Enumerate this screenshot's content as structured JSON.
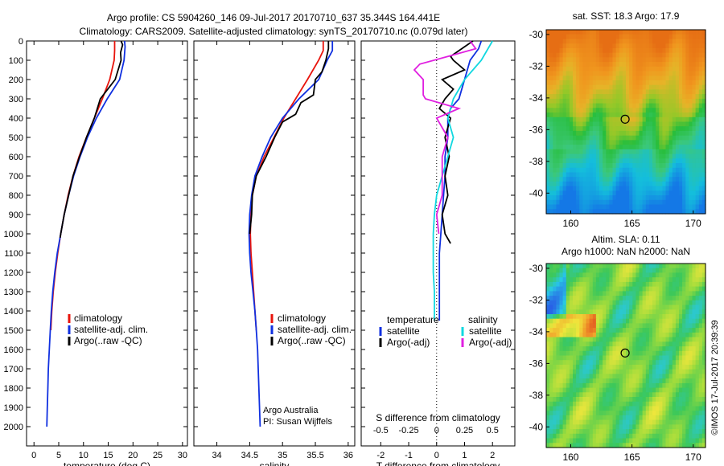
{
  "header": {
    "line1": "Argo profile: CS 5904260_146 09-Jul-2017 20170710_637 35.344S 164.441E",
    "line2": "Climatology: CARS2009. Satellite-adjusted climatology: synTS_20170710.nc (0.079d later)"
  },
  "colors": {
    "climatology": "#e8140c",
    "satellite": "#1030e0",
    "argo": "#000000",
    "sat_salinity": "#10d8e0",
    "argo_salinity_adj": "#e020e0"
  },
  "chart_data": [
    {
      "type": "line",
      "id": "temperature",
      "xlabel": "temperature (deg C)",
      "xlim": [
        -1.5,
        31
      ],
      "ylim": [
        2100,
        0
      ],
      "xticks": [
        0,
        5,
        10,
        15,
        20,
        25,
        30
      ],
      "yticks": [
        0,
        100,
        200,
        300,
        400,
        500,
        600,
        700,
        800,
        900,
        1000,
        1100,
        1200,
        1300,
        1400,
        1500,
        1600,
        1700,
        1800,
        1900,
        2000
      ],
      "legend": [
        "climatology",
        "satellite-adj. clim.",
        "Argo(..raw -QC)"
      ],
      "series": [
        {
          "name": "climatology",
          "color": "#e8140c",
          "points": [
            [
              16.3,
              0
            ],
            [
              16.3,
              50
            ],
            [
              16.2,
              100
            ],
            [
              15.3,
              200
            ],
            [
              13.8,
              300
            ],
            [
              12.2,
              400
            ],
            [
              10.6,
              500
            ],
            [
              9.1,
              600
            ],
            [
              7.9,
              700
            ],
            [
              6.9,
              800
            ],
            [
              6.1,
              900
            ],
            [
              5.4,
              1000
            ],
            [
              4.8,
              1100
            ],
            [
              4.3,
              1200
            ],
            [
              3.9,
              1300
            ],
            [
              3.6,
              1400
            ],
            [
              3.4,
              1500
            ]
          ]
        },
        {
          "name": "satellite-adj. clim.",
          "color": "#1030e0",
          "points": [
            [
              18.3,
              0
            ],
            [
              18.4,
              30
            ],
            [
              18.2,
              100
            ],
            [
              17.3,
              200
            ],
            [
              14.8,
              300
            ],
            [
              12.6,
              400
            ],
            [
              10.8,
              500
            ],
            [
              9.3,
              600
            ],
            [
              8.0,
              700
            ],
            [
              7.0,
              800
            ],
            [
              6.1,
              900
            ],
            [
              5.4,
              1000
            ],
            [
              4.7,
              1100
            ],
            [
              4.2,
              1200
            ],
            [
              3.8,
              1300
            ],
            [
              3.5,
              1400
            ],
            [
              3.3,
              1500
            ],
            [
              3.1,
              1600
            ],
            [
              2.9,
              1700
            ],
            [
              2.8,
              1800
            ],
            [
              2.7,
              1900
            ],
            [
              2.6,
              2000
            ]
          ]
        },
        {
          "name": "Argo(..raw -QC)",
          "color": "#000000",
          "points": [
            [
              17.6,
              0
            ],
            [
              17.9,
              20
            ],
            [
              17.5,
              60
            ],
            [
              17.6,
              100
            ],
            [
              16.4,
              200
            ],
            [
              13.4,
              300
            ],
            [
              12.2,
              400
            ],
            [
              10.6,
              500
            ],
            [
              9.2,
              600
            ],
            [
              7.9,
              700
            ],
            [
              7.0,
              800
            ],
            [
              6.1,
              900
            ],
            [
              5.4,
              1000
            ],
            [
              5.3,
              1020
            ]
          ]
        }
      ]
    },
    {
      "type": "line",
      "id": "salinity",
      "xlabel": "salinity",
      "xlim": [
        33.65,
        36.1
      ],
      "ylim": [
        2100,
        0
      ],
      "xticks": [
        34,
        34.5,
        35,
        35.5,
        36
      ],
      "legend": [
        "climatology",
        "satellite-adj. clim.",
        "Argo(..raw -QC)"
      ],
      "annotation": [
        "Argo Australia",
        "PI: Susan Wijffels"
      ],
      "series": [
        {
          "name": "climatology",
          "color": "#e8140c",
          "points": [
            [
              35.62,
              0
            ],
            [
              35.62,
              50
            ],
            [
              35.55,
              100
            ],
            [
              35.38,
              200
            ],
            [
              35.2,
              300
            ],
            [
              35.02,
              400
            ],
            [
              34.87,
              500
            ],
            [
              34.72,
              600
            ],
            [
              34.6,
              700
            ],
            [
              34.54,
              800
            ],
            [
              34.52,
              900
            ],
            [
              34.51,
              1000
            ],
            [
              34.52,
              1100
            ],
            [
              34.54,
              1200
            ],
            [
              34.56,
              1300
            ],
            [
              34.58,
              1400
            ],
            [
              34.6,
              1500
            ]
          ]
        },
        {
          "name": "satellite-adj. clim.",
          "color": "#1030e0",
          "points": [
            [
              35.76,
              0
            ],
            [
              35.76,
              50
            ],
            [
              35.68,
              100
            ],
            [
              35.55,
              200
            ],
            [
              35.25,
              300
            ],
            [
              35.0,
              400
            ],
            [
              34.82,
              500
            ],
            [
              34.69,
              600
            ],
            [
              34.58,
              700
            ],
            [
              34.53,
              800
            ],
            [
              34.5,
              900
            ],
            [
              34.49,
              1000
            ],
            [
              34.5,
              1100
            ],
            [
              34.52,
              1200
            ],
            [
              34.55,
              1300
            ],
            [
              34.58,
              1400
            ],
            [
              34.6,
              1500
            ],
            [
              34.62,
              1600
            ],
            [
              34.63,
              1700
            ],
            [
              34.64,
              1800
            ],
            [
              34.65,
              1900
            ],
            [
              34.66,
              2000
            ]
          ]
        },
        {
          "name": "Argo(..raw -QC)",
          "color": "#000000",
          "points": [
            [
              35.7,
              0
            ],
            [
              35.7,
              40
            ],
            [
              35.66,
              100
            ],
            [
              35.6,
              160
            ],
            [
              35.5,
              200
            ],
            [
              35.47,
              280
            ],
            [
              35.28,
              320
            ],
            [
              35.2,
              380
            ],
            [
              35.0,
              420
            ],
            [
              34.88,
              500
            ],
            [
              34.75,
              600
            ],
            [
              34.6,
              700
            ],
            [
              34.54,
              800
            ],
            [
              34.53,
              900
            ],
            [
              34.5,
              1000
            ]
          ]
        }
      ]
    },
    {
      "type": "line",
      "id": "difference",
      "xlabel": "T difference from climatology",
      "xlabel_top": "S difference from climatology",
      "xlim": [
        -2.7,
        2.8
      ],
      "ylim": [
        2100,
        0
      ],
      "xticks": [
        -2,
        -1,
        0,
        1,
        2
      ],
      "xticks_salinity": [
        -0.5,
        -0.25,
        0,
        0.25,
        0.5
      ],
      "legend_headers": [
        "temperature",
        "salinity"
      ],
      "legend": [
        "satellite",
        "Argo(-adj)",
        "satellite",
        "Argo(-adj)"
      ],
      "series": [
        {
          "name": "satellite",
          "quantity": "temperature",
          "color": "#1030e0",
          "points": [
            [
              1.6,
              0
            ],
            [
              1.5,
              40
            ],
            [
              1.2,
              100
            ],
            [
              1.0,
              200
            ],
            [
              0.8,
              300
            ],
            [
              0.5,
              350
            ],
            [
              0.4,
              400
            ],
            [
              0.4,
              500
            ],
            [
              0.3,
              600
            ],
            [
              0.3,
              700
            ],
            [
              0.25,
              800
            ],
            [
              0.2,
              900
            ],
            [
              0.15,
              1000
            ],
            [
              0.1,
              1100
            ],
            [
              0.1,
              1200
            ],
            [
              0.1,
              1300
            ],
            [
              0.1,
              1450
            ]
          ]
        },
        {
          "name": "Argo(-adj)",
          "quantity": "temperature",
          "color": "#000000",
          "points": [
            [
              1.3,
              0
            ],
            [
              0.9,
              40
            ],
            [
              0.5,
              80
            ],
            [
              0.6,
              100
            ],
            [
              1.0,
              150
            ],
            [
              0.2,
              200
            ],
            [
              0.6,
              250
            ],
            [
              0.3,
              300
            ],
            [
              0.1,
              350
            ],
            [
              0.5,
              400
            ],
            [
              0.3,
              500
            ],
            [
              0.45,
              600
            ],
            [
              0.3,
              700
            ],
            [
              0.4,
              800
            ],
            [
              0.2,
              900
            ],
            [
              0.3,
              1000
            ],
            [
              0.5,
              1050
            ]
          ]
        },
        {
          "name": "satellite",
          "quantity": "salinity",
          "color": "#10d8e0",
          "points": [
            [
              0.5,
              0
            ],
            [
              0.4,
              100
            ],
            [
              0.25,
              200
            ],
            [
              0.15,
              300
            ],
            [
              0.1,
              400
            ],
            [
              0.15,
              500
            ],
            [
              0.1,
              600
            ],
            [
              0.05,
              700
            ],
            [
              0.0,
              800
            ],
            [
              -0.02,
              900
            ],
            [
              -0.03,
              1000
            ],
            [
              -0.03,
              1100
            ],
            [
              -0.03,
              1200
            ],
            [
              -0.02,
              1300
            ],
            [
              -0.02,
              1450
            ]
          ]
        },
        {
          "name": "Argo(-adj)",
          "quantity": "salinity",
          "color": "#e020e0",
          "points": [
            [
              0.3,
              0
            ],
            [
              0.35,
              40
            ],
            [
              0.1,
              80
            ],
            [
              -0.15,
              120
            ],
            [
              -0.2,
              150
            ],
            [
              -0.12,
              200
            ],
            [
              -0.12,
              280
            ],
            [
              -0.1,
              300
            ],
            [
              0.2,
              350
            ],
            [
              0.0,
              400
            ],
            [
              0.1,
              500
            ],
            [
              0.05,
              600
            ],
            [
              0.05,
              700
            ],
            [
              0.05,
              800
            ],
            [
              0.0,
              900
            ],
            [
              0.02,
              1000
            ]
          ]
        }
      ]
    },
    {
      "type": "heatmap",
      "id": "sst",
      "title": "sat. SST: 18.3 Argo: 17.9",
      "xlim": [
        158,
        171
      ],
      "ylim": [
        -41.3,
        -29.7
      ],
      "xticks": [
        160,
        165,
        170
      ],
      "yticks": [
        -30,
        -32,
        -34,
        -36,
        -38,
        -40
      ],
      "marker": [
        164.44,
        -35.34
      ]
    },
    {
      "type": "heatmap",
      "id": "sla",
      "title_lines": [
        "Altim. SLA: 0.11",
        "Argo h1000: NaN h2000: NaN"
      ],
      "xlim": [
        158,
        171
      ],
      "ylim": [
        -41.3,
        -29.7
      ],
      "xticks": [
        160,
        165,
        170
      ],
      "yticks": [
        -30,
        -32,
        -34,
        -36,
        -38,
        -40
      ],
      "marker": [
        164.44,
        -35.34
      ]
    }
  ],
  "footer": {
    "stamp": "©IMOS 17-Jul-2017 20:39:39"
  }
}
